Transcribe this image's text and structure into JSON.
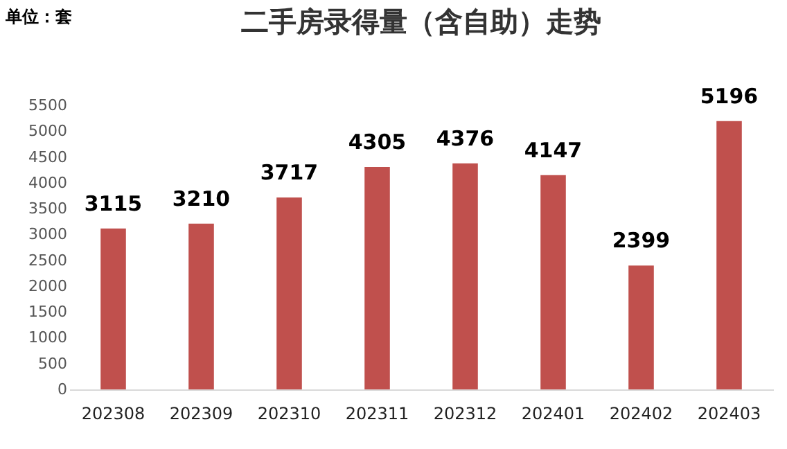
{
  "chart_data": {
    "type": "bar",
    "title": "二手房录得量（含自助）走势",
    "annotations": [
      "单位：套"
    ],
    "categories": [
      "202308",
      "202309",
      "202310",
      "202311",
      "202312",
      "202401",
      "202402",
      "202403"
    ],
    "values": [
      3115,
      3210,
      3717,
      4305,
      4376,
      4147,
      2399,
      5196
    ],
    "color": "#c0504d",
    "ylim": [
      0,
      5500
    ],
    "yticks": [
      0,
      500,
      1000,
      1500,
      2000,
      2500,
      3000,
      3500,
      4000,
      4500,
      5000,
      5500
    ],
    "data_labels": true,
    "grid": false
  }
}
